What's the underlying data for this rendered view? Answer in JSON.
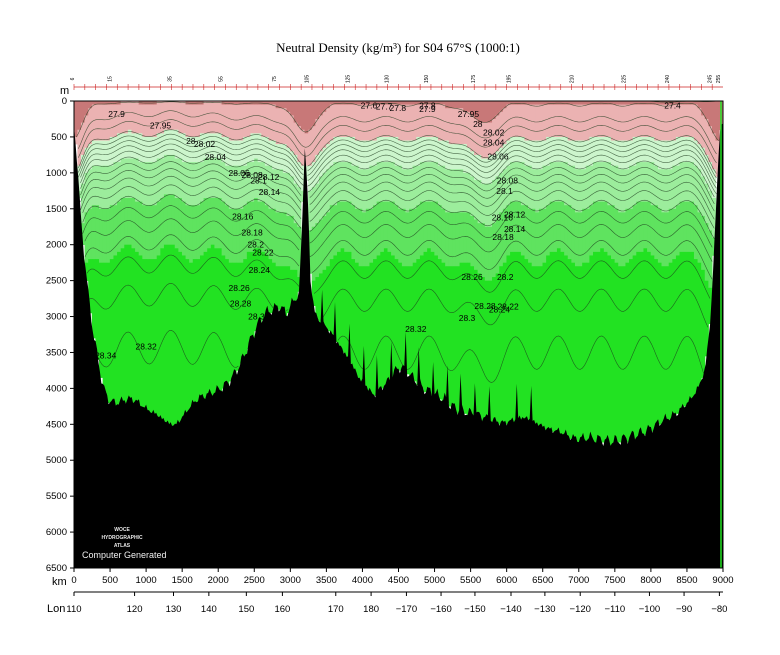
{
  "chart_data": {
    "type": "contour-section",
    "title": "Neutral Density (kg/m³) for S04 67°S (1000:1)",
    "ylabel": "m",
    "xlabel": "km",
    "lonlabel": "Lon",
    "ylim": [
      6500,
      0
    ],
    "xlim": [
      0,
      9000
    ],
    "y_ticks": [
      0,
      500,
      1000,
      1500,
      2000,
      2500,
      3000,
      3500,
      4000,
      4500,
      5000,
      5500,
      6000,
      6500
    ],
    "x_ticks": [
      0,
      500,
      1000,
      1500,
      2000,
      2500,
      3000,
      3500,
      4000,
      4500,
      5000,
      5500,
      6000,
      6500,
      7000,
      7500,
      8000,
      8500,
      9000
    ],
    "lon_ticks": [
      {
        "label": "110",
        "km": 0
      },
      {
        "label": "120",
        "km": 840
      },
      {
        "label": "130",
        "km": 1380
      },
      {
        "label": "140",
        "km": 1870
      },
      {
        "label": "150",
        "km": 2390
      },
      {
        "label": "160",
        "km": 2890
      },
      {
        "label": "170",
        "km": 3630
      },
      {
        "label": "180",
        "km": 4120
      },
      {
        "label": "−170",
        "km": 4610
      },
      {
        "label": "−160",
        "km": 5090
      },
      {
        "label": "−150",
        "km": 5560
      },
      {
        "label": "−140",
        "km": 6060
      },
      {
        "label": "−130",
        "km": 6530
      },
      {
        "label": "−120",
        "km": 7020
      },
      {
        "label": "−110",
        "km": 7500
      },
      {
        "label": "−100",
        "km": 7980
      },
      {
        "label": "−90",
        "km": 8460
      },
      {
        "label": "−80",
        "km": 8950
      }
    ],
    "station_labels": [
      {
        "label": "6",
        "km": 0
      },
      {
        "label": "15",
        "km": 520
      },
      {
        "label": "35",
        "km": 1350
      },
      {
        "label": "55",
        "km": 2060
      },
      {
        "label": "75",
        "km": 2800
      },
      {
        "label": "105",
        "km": 3250
      },
      {
        "label": "125",
        "km": 3820
      },
      {
        "label": "130",
        "km": 4360
      },
      {
        "label": "150",
        "km": 4910
      },
      {
        "label": "175",
        "km": 5560
      },
      {
        "label": "195",
        "km": 6050
      },
      {
        "label": "210",
        "km": 6930
      },
      {
        "label": "225",
        "km": 7650
      },
      {
        "label": "240",
        "km": 8250
      },
      {
        "label": "245",
        "km": 8840
      },
      {
        "label": "255",
        "km": 8960
      }
    ],
    "fill_bands": [
      {
        "from": 0,
        "to": 27.8,
        "color": "#c87878"
      },
      {
        "from": 27.8,
        "to": 28.0,
        "color": "#ebb2b2"
      },
      {
        "from": 28.0,
        "to": 28.1,
        "color": "#ccf5cc"
      },
      {
        "from": 28.1,
        "to": 28.2,
        "color": "#9ced9c"
      },
      {
        "from": 28.2,
        "to": 28.27,
        "color": "#5fe35f"
      },
      {
        "from": 28.27,
        "to": 99,
        "color": "#22e222"
      }
    ],
    "contour_levels": [
      27.4,
      27.6,
      27.7,
      27.8,
      27.9,
      27.95,
      28,
      28.02,
      28.04,
      28.06,
      28.08,
      28.1,
      28.12,
      28.14,
      28.16,
      28.18,
      28.2,
      28.22,
      28.24,
      28.26,
      28.28,
      28.3,
      28.32
    ],
    "contour_labels": [
      {
        "text": "27.9",
        "km": 590,
        "depth": 180
      },
      {
        "text": "27.95",
        "km": 1200,
        "depth": 340
      },
      {
        "text": "28",
        "km": 1620,
        "depth": 560
      },
      {
        "text": "28.02",
        "km": 1810,
        "depth": 600
      },
      {
        "text": "28.04",
        "km": 1960,
        "depth": 780
      },
      {
        "text": "28.06",
        "km": 2290,
        "depth": 1000
      },
      {
        "text": "28.08",
        "km": 2470,
        "depth": 1030
      },
      {
        "text": "28.1",
        "km": 2560,
        "depth": 1110
      },
      {
        "text": "28.12",
        "km": 2700,
        "depth": 1060
      },
      {
        "text": "28.14",
        "km": 2710,
        "depth": 1270
      },
      {
        "text": "28.16",
        "km": 2340,
        "depth": 1610
      },
      {
        "text": "28.18",
        "km": 2470,
        "depth": 1830
      },
      {
        "text": "28.2",
        "km": 2520,
        "depth": 2000
      },
      {
        "text": "28.22",
        "km": 2620,
        "depth": 2110
      },
      {
        "text": "28.24",
        "km": 2570,
        "depth": 2350
      },
      {
        "text": "28.26",
        "km": 2290,
        "depth": 2600
      },
      {
        "text": "28.28",
        "km": 2310,
        "depth": 2820
      },
      {
        "text": "28.3",
        "km": 2530,
        "depth": 3000
      },
      {
        "text": "28.32",
        "km": 1000,
        "depth": 3420
      },
      {
        "text": "27.6",
        "km": 4090,
        "depth": 60
      },
      {
        "text": "27.7",
        "km": 4300,
        "depth": 80
      },
      {
        "text": "27.8",
        "km": 4490,
        "depth": 100
      },
      {
        "text": "27.8",
        "km": 4900,
        "depth": 60
      },
      {
        "text": "27.9",
        "km": 4900,
        "depth": 110
      },
      {
        "text": "27.95",
        "km": 5470,
        "depth": 180
      },
      {
        "text": "28",
        "km": 5600,
        "depth": 320
      },
      {
        "text": "28.02",
        "km": 5820,
        "depth": 440
      },
      {
        "text": "28.04",
        "km": 5820,
        "depth": 580
      },
      {
        "text": "28.06",
        "km": 5880,
        "depth": 770
      },
      {
        "text": "28.08",
        "km": 6010,
        "depth": 1110
      },
      {
        "text": "28.1",
        "km": 5970,
        "depth": 1250
      },
      {
        "text": "28.12",
        "km": 6110,
        "depth": 1580
      },
      {
        "text": "28.14",
        "km": 6110,
        "depth": 1780
      },
      {
        "text": "28.16",
        "km": 5940,
        "depth": 1620
      },
      {
        "text": "28.18",
        "km": 5950,
        "depth": 1890
      },
      {
        "text": "28.2",
        "km": 5980,
        "depth": 2450
      },
      {
        "text": "28.22",
        "km": 6020,
        "depth": 2860
      },
      {
        "text": "28.24",
        "km": 5900,
        "depth": 2900
      },
      {
        "text": "28.26",
        "km": 5520,
        "depth": 2450
      },
      {
        "text": "28.28",
        "km": 5700,
        "depth": 2850
      },
      {
        "text": "28.3",
        "km": 5450,
        "depth": 3020
      },
      {
        "text": "28.32",
        "km": 4740,
        "depth": 3170
      },
      {
        "text": "27.4",
        "km": 8300,
        "depth": 60
      },
      {
        "text": "28.34",
        "km": 440,
        "depth": 3540
      }
    ],
    "bathymetry": [
      [
        0,
        350
      ],
      [
        30,
        600
      ],
      [
        60,
        1100
      ],
      [
        100,
        1700
      ],
      [
        150,
        2200
      ],
      [
        200,
        2700
      ],
      [
        250,
        3100
      ],
      [
        300,
        3400
      ],
      [
        350,
        3700
      ],
      [
        400,
        3950
      ],
      [
        450,
        4100
      ],
      [
        500,
        4170
      ],
      [
        560,
        4200
      ],
      [
        650,
        4180
      ],
      [
        750,
        4140
      ],
      [
        850,
        4160
      ],
      [
        950,
        4240
      ],
      [
        1050,
        4310
      ],
      [
        1150,
        4360
      ],
      [
        1250,
        4440
      ],
      [
        1330,
        4490
      ],
      [
        1400,
        4510
      ],
      [
        1470,
        4440
      ],
      [
        1550,
        4330
      ],
      [
        1650,
        4200
      ],
      [
        1750,
        4120
      ],
      [
        1850,
        4080
      ],
      [
        1950,
        4040
      ],
      [
        2050,
        3990
      ],
      [
        2150,
        3900
      ],
      [
        2250,
        3760
      ],
      [
        2350,
        3560
      ],
      [
        2450,
        3320
      ],
      [
        2550,
        3100
      ],
      [
        2650,
        2950
      ],
      [
        2750,
        2900
      ],
      [
        2850,
        2850
      ],
      [
        2950,
        2960
      ],
      [
        3050,
        2760
      ],
      [
        3120,
        2700
      ],
      [
        3160,
        1800
      ],
      [
        3200,
        600
      ],
      [
        3240,
        1300
      ],
      [
        3280,
        2500
      ],
      [
        3350,
        3000
      ],
      [
        3450,
        3100
      ],
      [
        3550,
        3200
      ],
      [
        3650,
        3350
      ],
      [
        3750,
        3500
      ],
      [
        3850,
        3650
      ],
      [
        3950,
        3850
      ],
      [
        4050,
        3950
      ],
      [
        4150,
        4100
      ],
      [
        4250,
        4000
      ],
      [
        4350,
        3900
      ],
      [
        4450,
        3750
      ],
      [
        4550,
        3700
      ],
      [
        4650,
        3800
      ],
      [
        4750,
        3900
      ],
      [
        4850,
        4000
      ],
      [
        4950,
        4050
      ],
      [
        5050,
        4100
      ],
      [
        5150,
        4150
      ],
      [
        5250,
        4250
      ],
      [
        5350,
        4300
      ],
      [
        5450,
        4330
      ],
      [
        5550,
        4350
      ],
      [
        5650,
        4380
      ],
      [
        5750,
        4420
      ],
      [
        5850,
        4450
      ],
      [
        5950,
        4480
      ],
      [
        6050,
        4450
      ],
      [
        6150,
        4420
      ],
      [
        6250,
        4400
      ],
      [
        6350,
        4450
      ],
      [
        6450,
        4500
      ],
      [
        6550,
        4550
      ],
      [
        6650,
        4580
      ],
      [
        6750,
        4600
      ],
      [
        6850,
        4650
      ],
      [
        6950,
        4700
      ],
      [
        7050,
        4690
      ],
      [
        7150,
        4680
      ],
      [
        7250,
        4700
      ],
      [
        7350,
        4720
      ],
      [
        7450,
        4730
      ],
      [
        7550,
        4720
      ],
      [
        7650,
        4690
      ],
      [
        7750,
        4650
      ],
      [
        7850,
        4620
      ],
      [
        7950,
        4580
      ],
      [
        8050,
        4520
      ],
      [
        8150,
        4450
      ],
      [
        8250,
        4400
      ],
      [
        8350,
        4350
      ],
      [
        8450,
        4250
      ],
      [
        8550,
        4150
      ],
      [
        8650,
        4000
      ],
      [
        8750,
        3750
      ],
      [
        8830,
        3000
      ],
      [
        8880,
        2000
      ],
      [
        8920,
        1100
      ],
      [
        8960,
        400
      ],
      [
        9000,
        300
      ]
    ]
  },
  "logo": {
    "line1": "WOCE",
    "line2": "HYDROGRAPHIC",
    "line3": "ATLAS"
  },
  "footer_note": "Computer Generated",
  "colors": {
    "seafloor": "#000000",
    "axis": "#000000",
    "contour": "#1c3a1c",
    "top_label_color": "#cc2222"
  }
}
